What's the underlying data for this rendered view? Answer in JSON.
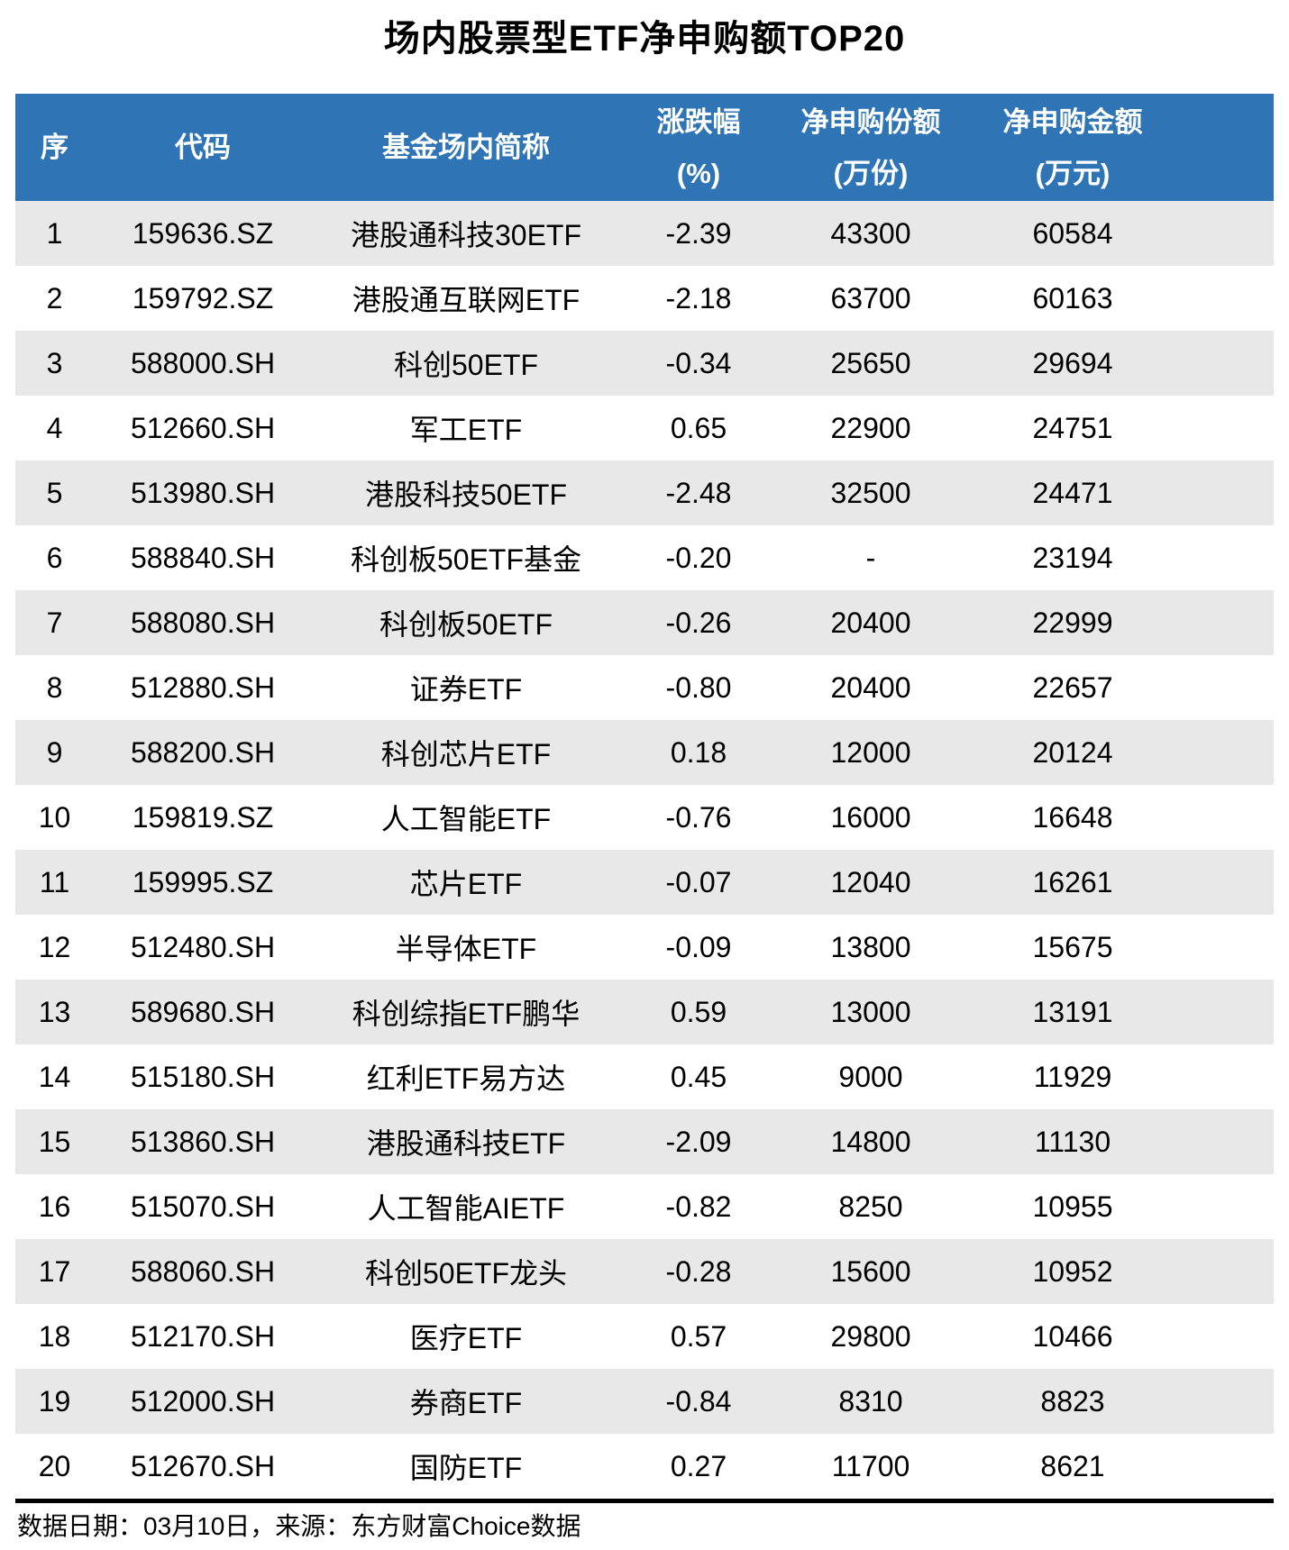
{
  "chart_data": {
    "type": "table",
    "title": "场内股票型ETF净申购额TOP20",
    "columns": [
      {
        "line1": "序"
      },
      {
        "line1": "代码"
      },
      {
        "line1": "基金场内简称"
      },
      {
        "line1": "涨跌幅",
        "line2": "(%)"
      },
      {
        "line1": "净申购份额",
        "line2": "(万份)"
      },
      {
        "line1": "净申购金额",
        "line2": "(万元)"
      }
    ],
    "rows": [
      [
        "1",
        "159636.SZ",
        "港股通科技30ETF",
        "-2.39",
        "43300",
        "60584"
      ],
      [
        "2",
        "159792.SZ",
        "港股通互联网ETF",
        "-2.18",
        "63700",
        "60163"
      ],
      [
        "3",
        "588000.SH",
        "科创50ETF",
        "-0.34",
        "25650",
        "29694"
      ],
      [
        "4",
        "512660.SH",
        "军工ETF",
        "0.65",
        "22900",
        "24751"
      ],
      [
        "5",
        "513980.SH",
        "港股科技50ETF",
        "-2.48",
        "32500",
        "24471"
      ],
      [
        "6",
        "588840.SH",
        "科创板50ETF基金",
        "-0.20",
        "-",
        "23194"
      ],
      [
        "7",
        "588080.SH",
        "科创板50ETF",
        "-0.26",
        "20400",
        "22999"
      ],
      [
        "8",
        "512880.SH",
        "证券ETF",
        "-0.80",
        "20400",
        "22657"
      ],
      [
        "9",
        "588200.SH",
        "科创芯片ETF",
        "0.18",
        "12000",
        "20124"
      ],
      [
        "10",
        "159819.SZ",
        "人工智能ETF",
        "-0.76",
        "16000",
        "16648"
      ],
      [
        "11",
        "159995.SZ",
        "芯片ETF",
        "-0.07",
        "12040",
        "16261"
      ],
      [
        "12",
        "512480.SH",
        "半导体ETF",
        "-0.09",
        "13800",
        "15675"
      ],
      [
        "13",
        "589680.SH",
        "科创综指ETF鹏华",
        "0.59",
        "13000",
        "13191"
      ],
      [
        "14",
        "515180.SH",
        "红利ETF易方达",
        "0.45",
        "9000",
        "11929"
      ],
      [
        "15",
        "513860.SH",
        "港股通科技ETF",
        "-2.09",
        "14800",
        "11130"
      ],
      [
        "16",
        "515070.SH",
        "人工智能AIETF",
        "-0.82",
        "8250",
        "10955"
      ],
      [
        "17",
        "588060.SH",
        "科创50ETF龙头",
        "-0.28",
        "15600",
        "10952"
      ],
      [
        "18",
        "512170.SH",
        "医疗ETF",
        "0.57",
        "29800",
        "10466"
      ],
      [
        "19",
        "512000.SH",
        "券商ETF",
        "-0.84",
        "8310",
        "8823"
      ],
      [
        "20",
        "512670.SH",
        "国防ETF",
        "0.27",
        "11700",
        "8621"
      ]
    ],
    "layout": {
      "header_rows": 1,
      "zebra_striping": "odd-rows-gray",
      "grid": false
    }
  },
  "footer": {
    "text": "数据日期：03月10日，来源：东方财富Choice数据"
  },
  "colors": {
    "header_bg": "#2F74B4",
    "header_text": "#FFFFFF",
    "row_alt_bg": "#E8E8E8",
    "body_text": "#000000"
  }
}
